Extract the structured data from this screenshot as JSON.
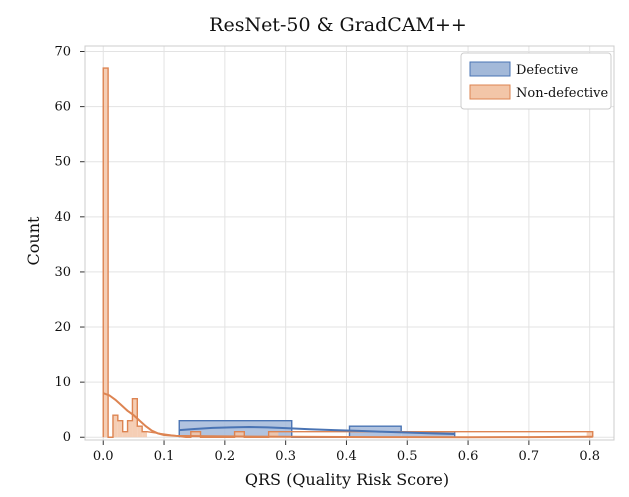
{
  "chart_data": {
    "type": "histogram",
    "title": "ResNet-50 & GradCAM++",
    "xlabel": "QRS (Quality Risk Score)",
    "ylabel": "Count",
    "xlim": [
      -0.03,
      0.84
    ],
    "ylim": [
      -0.5,
      71
    ],
    "xticks": [
      0.0,
      0.1,
      0.2,
      0.3,
      0.4,
      0.5,
      0.6,
      0.7,
      0.8
    ],
    "xtick_labels": [
      "0.0",
      "0.1",
      "0.2",
      "0.3",
      "0.4",
      "0.5",
      "0.6",
      "0.7",
      "0.8"
    ],
    "yticks": [
      0,
      10,
      20,
      30,
      40,
      50,
      60,
      70
    ],
    "ytick_labels": [
      "0",
      "10",
      "20",
      "30",
      "40",
      "50",
      "60",
      "70"
    ],
    "grid": true,
    "legend_position": "top-right",
    "colors": {
      "defective_fill": "#a3b9d9",
      "defective_line": "#4a74b4",
      "nondefective_fill": "#f3c6a8",
      "nondefective_line": "#dd8452"
    },
    "series": [
      {
        "name": "Defective",
        "bins": [
          {
            "x0": 0.125,
            "x1": 0.31,
            "count": 3
          },
          {
            "x0": 0.31,
            "x1": 0.405,
            "count": 0
          },
          {
            "x0": 0.405,
            "x1": 0.49,
            "count": 2
          },
          {
            "x0": 0.49,
            "x1": 0.578,
            "count": 1
          }
        ],
        "kde": [
          [
            0.125,
            1.3
          ],
          [
            0.15,
            1.5
          ],
          [
            0.18,
            1.7
          ],
          [
            0.21,
            1.8
          ],
          [
            0.24,
            1.85
          ],
          [
            0.27,
            1.8
          ],
          [
            0.3,
            1.65
          ],
          [
            0.34,
            1.45
          ],
          [
            0.38,
            1.3
          ],
          [
            0.42,
            1.15
          ],
          [
            0.46,
            1.0
          ],
          [
            0.5,
            0.85
          ],
          [
            0.54,
            0.7
          ],
          [
            0.578,
            0.6
          ]
        ]
      },
      {
        "name": "Non-defective",
        "bins": [
          {
            "x0": 0.0,
            "x1": 0.008,
            "count": 67
          },
          {
            "x0": 0.008,
            "x1": 0.016,
            "count": 0
          },
          {
            "x0": 0.016,
            "x1": 0.024,
            "count": 4
          },
          {
            "x0": 0.024,
            "x1": 0.032,
            "count": 3
          },
          {
            "x0": 0.032,
            "x1": 0.04,
            "count": 1
          },
          {
            "x0": 0.04,
            "x1": 0.048,
            "count": 3
          },
          {
            "x0": 0.048,
            "x1": 0.056,
            "count": 7
          },
          {
            "x0": 0.056,
            "x1": 0.064,
            "count": 2
          },
          {
            "x0": 0.064,
            "x1": 0.072,
            "count": 1
          },
          {
            "x0": 0.136,
            "x1": 0.144,
            "count": 0
          },
          {
            "x0": 0.144,
            "x1": 0.16,
            "count": 1
          },
          {
            "x0": 0.16,
            "x1": 0.216,
            "count": 0
          },
          {
            "x0": 0.216,
            "x1": 0.232,
            "count": 1
          },
          {
            "x0": 0.232,
            "x1": 0.272,
            "count": 0
          },
          {
            "x0": 0.272,
            "x1": 0.288,
            "count": 1
          },
          {
            "x0": 0.795,
            "x1": 0.805,
            "count": 1
          }
        ],
        "kde": [
          [
            0.0,
            8.0
          ],
          [
            0.01,
            7.6
          ],
          [
            0.02,
            6.8
          ],
          [
            0.03,
            5.8
          ],
          [
            0.04,
            4.8
          ],
          [
            0.05,
            4.0
          ],
          [
            0.06,
            3.0
          ],
          [
            0.07,
            2.0
          ],
          [
            0.08,
            1.2
          ],
          [
            0.09,
            0.7
          ],
          [
            0.1,
            0.4
          ],
          [
            0.12,
            0.25
          ],
          [
            0.15,
            0.2
          ],
          [
            0.2,
            0.15
          ],
          [
            0.25,
            0.12
          ],
          [
            0.3,
            0.08
          ],
          [
            0.4,
            0.04
          ],
          [
            0.5,
            0.02
          ],
          [
            0.6,
            0.01
          ],
          [
            0.7,
            0.02
          ],
          [
            0.805,
            0.1
          ]
        ]
      }
    ]
  }
}
